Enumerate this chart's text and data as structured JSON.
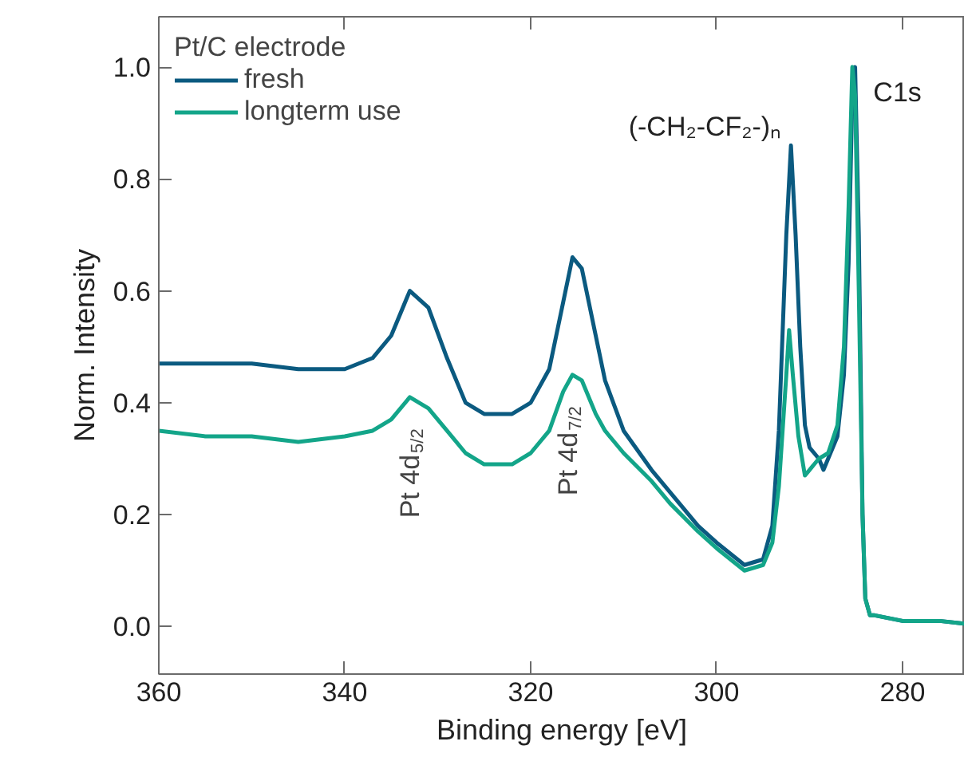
{
  "chart_data": {
    "type": "line",
    "xlabel": "Binding energy [eV]",
    "ylabel": "Norm. Intensity",
    "legend_title": "Pt/C electrode",
    "legend": "top left",
    "grid": false,
    "xlim": [
      360,
      273.3
    ],
    "ylim": [
      -0.085,
      1.09
    ],
    "xticks": [
      360,
      340,
      320,
      300,
      280
    ],
    "yticks": [
      {
        "value": 0,
        "label": "0.0"
      },
      0.2,
      0.4,
      0.6,
      0.8,
      {
        "value": 1,
        "label": "1.0"
      }
    ],
    "series": [
      {
        "name": "fresh",
        "color": "#0b5a80",
        "x": [
          360,
          355,
          350,
          345,
          340,
          337,
          335,
          333,
          331,
          329,
          327,
          325,
          322,
          320,
          318,
          316.5,
          315.5,
          314.5,
          313,
          312,
          310,
          307,
          305,
          302,
          300,
          297,
          295,
          294,
          293.3,
          292.5,
          292,
          291.5,
          291,
          290.5,
          290,
          289.5,
          289,
          288.5,
          288,
          287,
          286.3,
          285.8,
          285.4,
          285.1,
          284.7,
          284.3,
          284,
          283.5,
          283,
          280,
          276,
          273.3
        ],
        "values": [
          0.47,
          0.47,
          0.47,
          0.46,
          0.46,
          0.48,
          0.52,
          0.6,
          0.57,
          0.48,
          0.4,
          0.38,
          0.38,
          0.4,
          0.46,
          0.58,
          0.66,
          0.64,
          0.52,
          0.44,
          0.35,
          0.28,
          0.24,
          0.18,
          0.15,
          0.11,
          0.12,
          0.18,
          0.35,
          0.7,
          0.86,
          0.7,
          0.5,
          0.36,
          0.32,
          0.31,
          0.3,
          0.28,
          0.3,
          0.34,
          0.45,
          0.65,
          0.95,
          1.0,
          0.7,
          0.2,
          0.05,
          0.02,
          0.02,
          0.01,
          0.01,
          0.005
        ]
      },
      {
        "name": "longterm use",
        "color": "#13a589",
        "x": [
          360,
          355,
          350,
          345,
          340,
          337,
          335,
          333,
          331,
          329,
          327,
          325,
          322,
          320,
          318,
          316.5,
          315.5,
          314.5,
          313,
          312,
          310,
          307,
          305,
          302,
          300,
          297,
          295,
          294,
          293.3,
          292.5,
          292.2,
          291.8,
          291.2,
          290.5,
          290,
          289.5,
          289,
          288,
          287,
          286.3,
          285.8,
          285.4,
          285.1,
          284.7,
          284.3,
          284,
          283.5,
          283,
          280,
          276,
          273.3
        ],
        "values": [
          0.35,
          0.34,
          0.34,
          0.33,
          0.34,
          0.35,
          0.37,
          0.41,
          0.39,
          0.35,
          0.31,
          0.29,
          0.29,
          0.31,
          0.35,
          0.42,
          0.45,
          0.44,
          0.38,
          0.35,
          0.31,
          0.26,
          0.22,
          0.17,
          0.14,
          0.1,
          0.11,
          0.15,
          0.25,
          0.45,
          0.53,
          0.45,
          0.34,
          0.27,
          0.28,
          0.29,
          0.3,
          0.31,
          0.36,
          0.5,
          0.75,
          1.0,
          0.95,
          0.6,
          0.2,
          0.05,
          0.02,
          0.02,
          0.01,
          0.01,
          0.005
        ]
      }
    ],
    "annotations": [
      {
        "text": "Pt 4d$_{5/2}$",
        "x": 333,
        "y": 0.41
      },
      {
        "text": "Pt 4d$_{7/2}$",
        "x": 316,
        "y": 0.45
      },
      {
        "text": "(-CH₂-CF₂-)ₙ",
        "x": 292,
        "y": 0.86
      },
      {
        "text": "C1s",
        "x": 285.2,
        "y": 1.0
      }
    ]
  }
}
